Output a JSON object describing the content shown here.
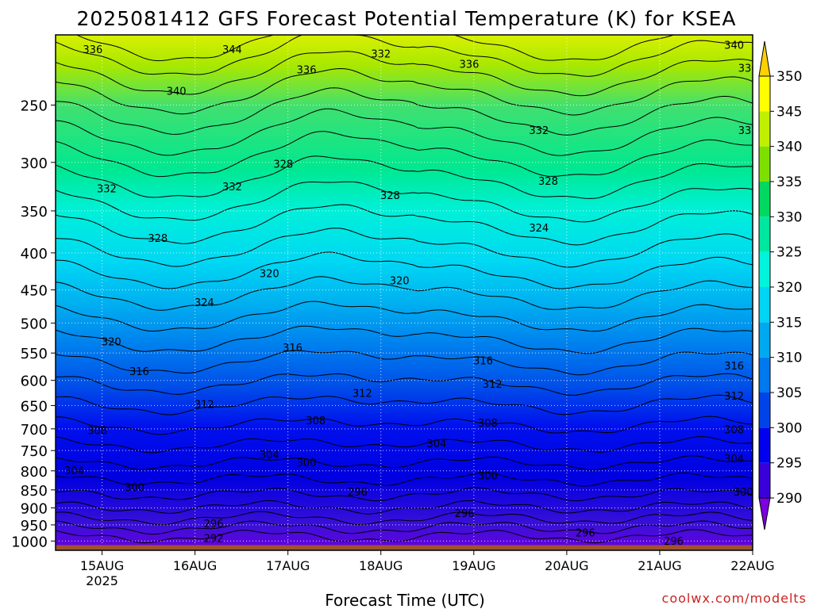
{
  "chart_data": {
    "type": "heatmap",
    "title": "2025081412 GFS Forecast Potential Temperature (K) for KSEA",
    "xlabel": "Forecast Time (UTC)",
    "ylabel": "",
    "x_ticks": [
      "15AUG",
      "16AUG",
      "17AUG",
      "18AUG",
      "19AUG",
      "20AUG",
      "21AUG",
      "22AUG"
    ],
    "x_year_label": "2025",
    "x_range_days": [
      14.5,
      22.0
    ],
    "y_ticks": [
      250,
      300,
      350,
      400,
      450,
      500,
      550,
      600,
      650,
      700,
      750,
      800,
      850,
      900,
      950,
      1000
    ],
    "y_range_hpa": [
      200,
      1030
    ],
    "y_scale": "log (pressure, inverted)",
    "grid": "dotted white at ticks",
    "colorbar": {
      "levels": [
        290,
        295,
        300,
        305,
        310,
        315,
        320,
        325,
        330,
        335,
        340,
        345,
        350
      ],
      "colors": [
        "#7c00e0",
        "#3a00d8",
        "#0000ee",
        "#0044e8",
        "#0078ee",
        "#00a8f0",
        "#00d4f4",
        "#00f4dc",
        "#00e8a0",
        "#00d860",
        "#7ee000",
        "#c0f000",
        "#ffff00",
        "#ffd000"
      ],
      "extend": "both"
    },
    "contour_interval_K": 2,
    "contour_labels": [
      {
        "value": "336",
        "day": 14.9,
        "p": 212
      },
      {
        "value": "344",
        "day": 16.4,
        "p": 212
      },
      {
        "value": "340",
        "day": 15.8,
        "p": 242
      },
      {
        "value": "336",
        "day": 17.2,
        "p": 226
      },
      {
        "value": "332",
        "day": 18.0,
        "p": 215
      },
      {
        "value": "336",
        "day": 18.95,
        "p": 222
      },
      {
        "value": "344",
        "day": 21.8,
        "p": 198
      },
      {
        "value": "340",
        "day": 21.8,
        "p": 209
      },
      {
        "value": "336",
        "day": 21.95,
        "p": 225
      },
      {
        "value": "332",
        "day": 19.7,
        "p": 274
      },
      {
        "value": "332",
        "day": 21.95,
        "p": 274
      },
      {
        "value": "328",
        "day": 16.95,
        "p": 305
      },
      {
        "value": "332",
        "day": 15.05,
        "p": 330
      },
      {
        "value": "332",
        "day": 16.4,
        "p": 328
      },
      {
        "value": "328",
        "day": 19.8,
        "p": 322
      },
      {
        "value": "328",
        "day": 22.3,
        "p": 328
      },
      {
        "value": "328",
        "day": 18.1,
        "p": 337
      },
      {
        "value": "328",
        "day": 15.6,
        "p": 386
      },
      {
        "value": "324",
        "day": 19.7,
        "p": 374
      },
      {
        "value": "324",
        "day": 22.3,
        "p": 407
      },
      {
        "value": "320",
        "day": 16.8,
        "p": 432
      },
      {
        "value": "320",
        "day": 18.2,
        "p": 442
      },
      {
        "value": "324",
        "day": 16.1,
        "p": 474
      },
      {
        "value": "320",
        "day": 22.3,
        "p": 486
      },
      {
        "value": "320",
        "day": 15.1,
        "p": 537
      },
      {
        "value": "316",
        "day": 17.05,
        "p": 547
      },
      {
        "value": "316",
        "day": 15.4,
        "p": 590
      },
      {
        "value": "316",
        "day": 19.1,
        "p": 570
      },
      {
        "value": "316",
        "day": 21.8,
        "p": 580
      },
      {
        "value": "312",
        "day": 17.8,
        "p": 632
      },
      {
        "value": "312",
        "day": 19.2,
        "p": 614
      },
      {
        "value": "312",
        "day": 16.1,
        "p": 655
      },
      {
        "value": "312",
        "day": 21.8,
        "p": 638
      },
      {
        "value": "308",
        "day": 17.3,
        "p": 690
      },
      {
        "value": "308",
        "day": 19.15,
        "p": 695
      },
      {
        "value": "308",
        "day": 21.8,
        "p": 710
      },
      {
        "value": "308",
        "day": 14.95,
        "p": 712
      },
      {
        "value": "304",
        "day": 18.6,
        "p": 742
      },
      {
        "value": "304",
        "day": 16.8,
        "p": 769
      },
      {
        "value": "304",
        "day": 21.8,
        "p": 779
      },
      {
        "value": "304",
        "day": 14.7,
        "p": 809
      },
      {
        "value": "300",
        "day": 17.2,
        "p": 788
      },
      {
        "value": "300",
        "day": 19.15,
        "p": 822
      },
      {
        "value": "300",
        "day": 15.35,
        "p": 853
      },
      {
        "value": "300",
        "day": 21.9,
        "p": 866
      },
      {
        "value": "296",
        "day": 17.75,
        "p": 866
      },
      {
        "value": "296",
        "day": 18.9,
        "p": 927
      },
      {
        "value": "296",
        "day": 16.2,
        "p": 957
      },
      {
        "value": "296",
        "day": 20.2,
        "p": 985
      },
      {
        "value": "296",
        "day": 21.15,
        "p": 1012
      },
      {
        "value": "292",
        "day": 16.2,
        "p": 1003
      }
    ]
  },
  "credit": "coolwx.com/modelts"
}
